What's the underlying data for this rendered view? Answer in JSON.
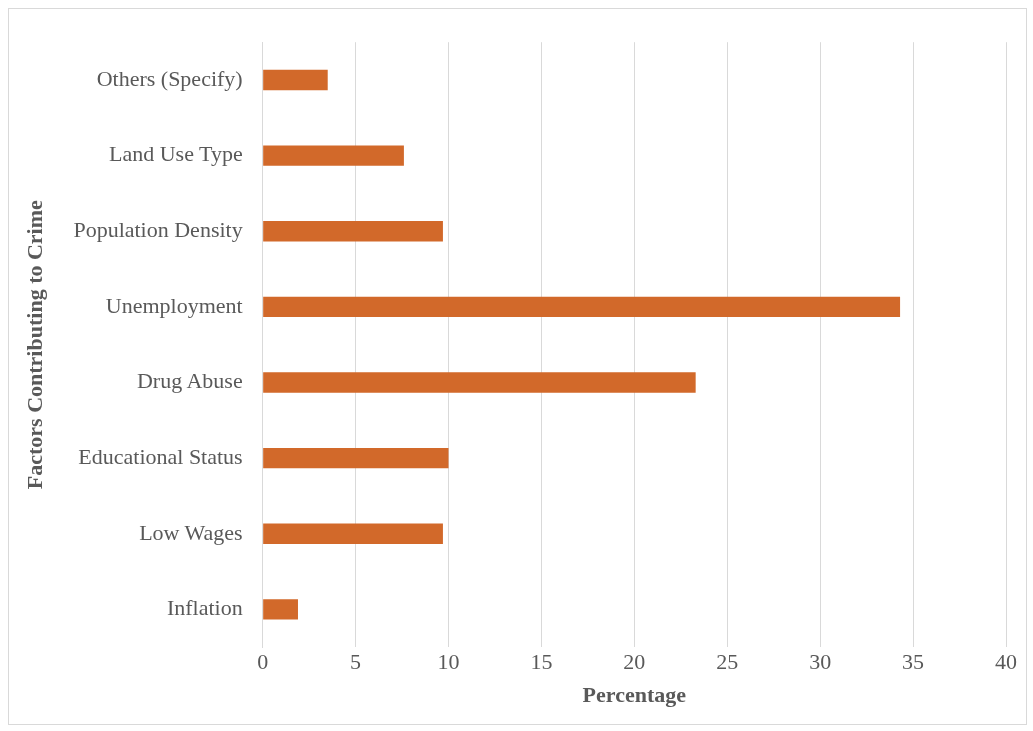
{
  "chart_data": {
    "type": "bar",
    "orientation": "horizontal",
    "categories": [
      "Others (Specify)",
      "Land Use Type",
      "Population Density",
      "Unemployment",
      "Drug Abuse",
      "Educational Status",
      "Low Wages",
      "Inflation"
    ],
    "values": [
      3.5,
      7.6,
      9.7,
      34.3,
      23.3,
      10.0,
      9.7,
      1.9
    ],
    "color": "#d2692a",
    "xlim": [
      0,
      40
    ],
    "xticks": [
      0,
      5,
      10,
      15,
      20,
      25,
      30,
      35,
      40
    ],
    "xlabel": "Percentage",
    "ylabel": "Factors Contributing to Crime",
    "grid": "x",
    "legend": false
  }
}
